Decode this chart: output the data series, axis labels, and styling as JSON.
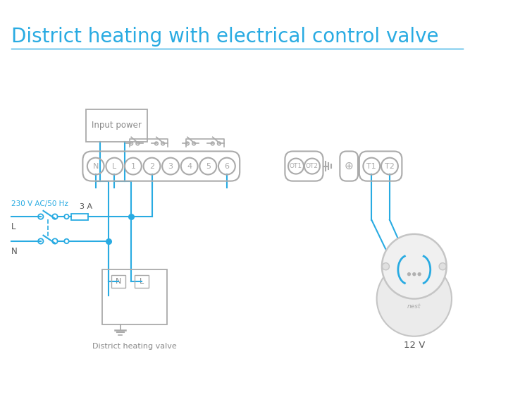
{
  "title": "District heating with electrical control valve",
  "title_color": "#29abe2",
  "bg_color": "#ffffff",
  "line_color": "#29abe2",
  "gray": "#aaaaaa",
  "dark_gray": "#888888",
  "label_230": "230 V AC/50 Hz",
  "label_L": "L",
  "label_N": "N",
  "label_3A": "3 A",
  "label_valve": "District heating valve",
  "label_12v": "12 V",
  "label_input": "Input power",
  "title_fontsize": 20
}
